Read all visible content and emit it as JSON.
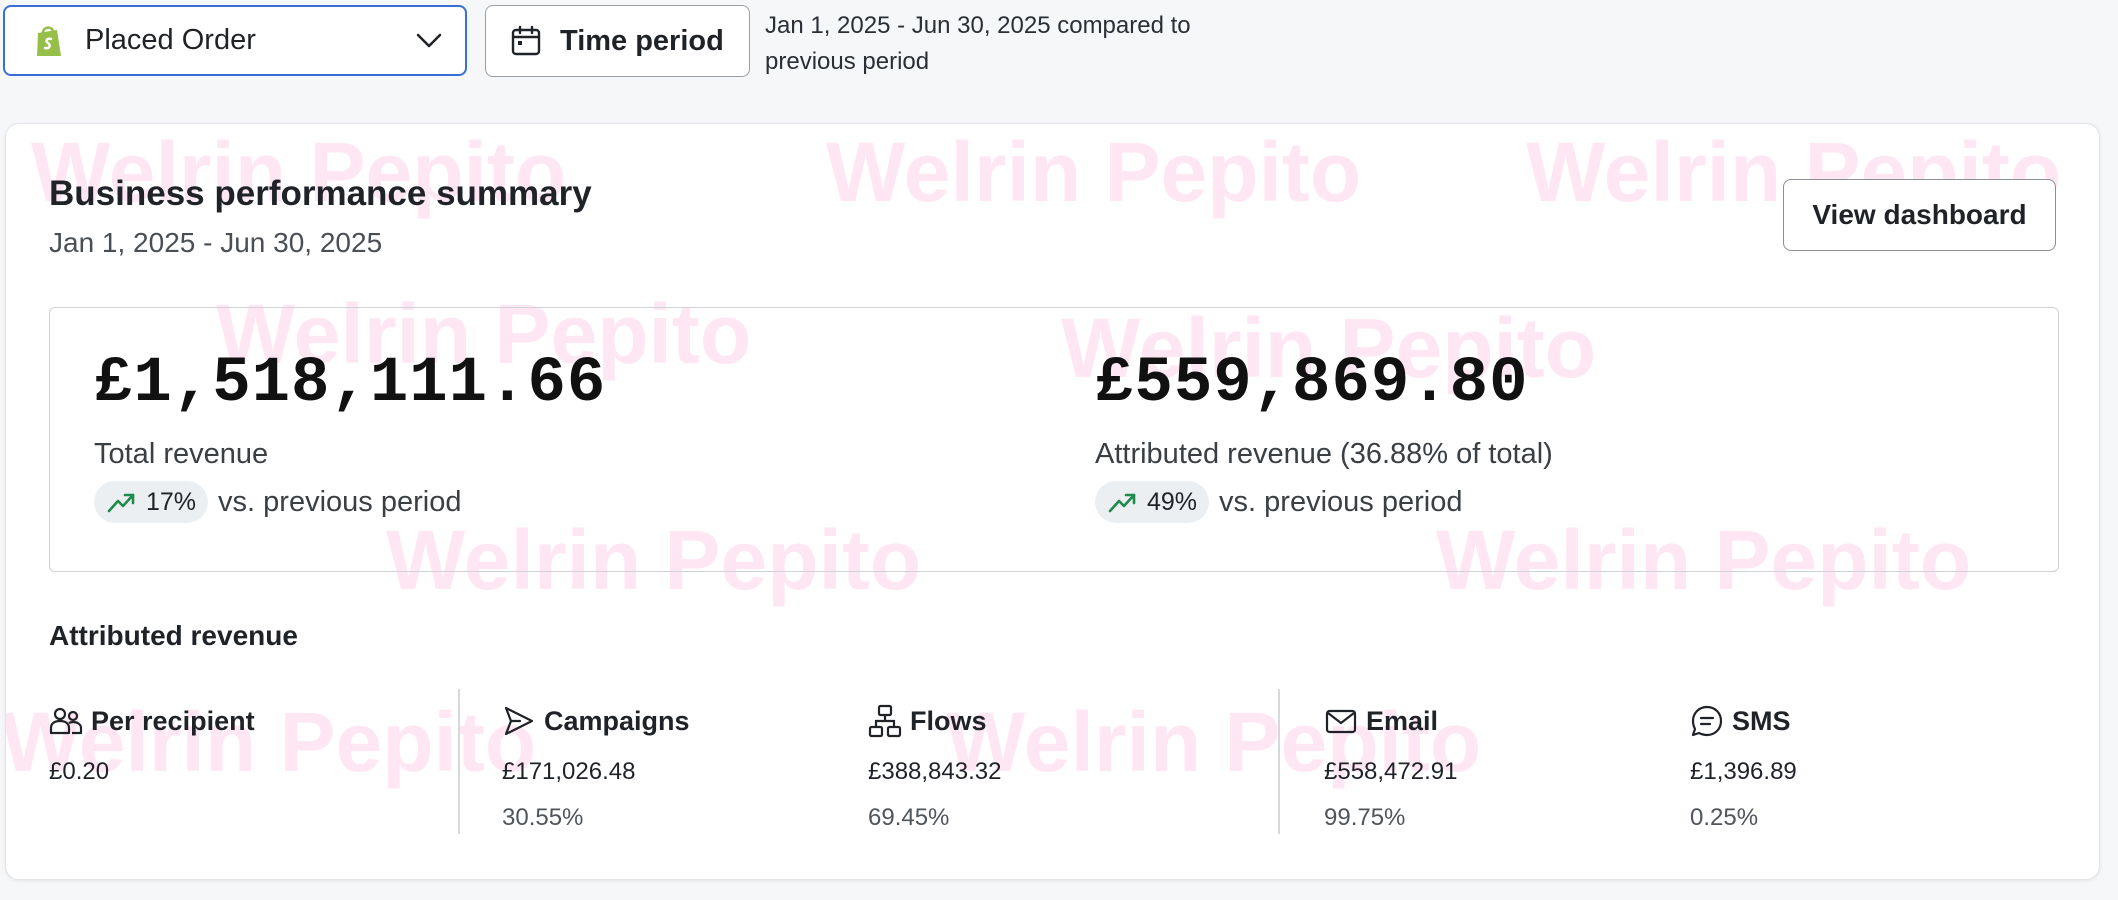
{
  "filters": {
    "metric_label": "Placed Order",
    "time_button_label": "Time period",
    "compare_text": "Jan 1, 2025 - Jun 30, 2025 compared to previous period"
  },
  "card": {
    "title": "Business performance summary",
    "subtitle": "Jan 1, 2025 - Jun 30, 2025",
    "view_dashboard_label": "View dashboard",
    "watermark_text": "Welrin Pepito"
  },
  "revenue": {
    "total": {
      "amount": "£1,518,111.66",
      "label": "Total revenue",
      "change": "17%",
      "change_suffix": "vs. previous period"
    },
    "attributed": {
      "amount": "£559,869.80",
      "label": "Attributed revenue (36.88% of total)",
      "change": "49%",
      "change_suffix": "vs. previous period"
    }
  },
  "attributed_section": {
    "heading": "Attributed revenue",
    "stats": [
      {
        "name": "Per recipient",
        "value": "£0.20",
        "pct": "",
        "icon": "people-icon"
      },
      {
        "name": "Campaigns",
        "value": "£171,026.48",
        "pct": "30.55%",
        "icon": "send-icon"
      },
      {
        "name": "Flows",
        "value": "£388,843.32",
        "pct": "69.45%",
        "icon": "flow-icon"
      },
      {
        "name": "Email",
        "value": "£558,472.91",
        "pct": "99.75%",
        "icon": "mail-icon"
      },
      {
        "name": "SMS",
        "value": "£1,396.89",
        "pct": "0.25%",
        "icon": "sms-icon"
      }
    ]
  },
  "colors": {
    "accent_border": "#3b6fd8",
    "trend_up": "#1e8a4c",
    "shopify_green": "#95bf47",
    "watermark": "#ffe6f3"
  }
}
